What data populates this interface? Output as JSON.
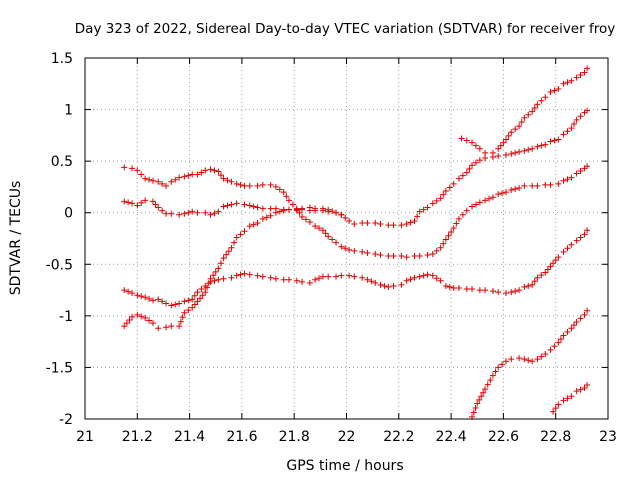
{
  "chart_data": {
    "type": "scatter",
    "title": "Day 323 of 2022, Sidereal Day-to-day VTEC variation (SDTVAR) for receiver froy",
    "xlabel": "GPS time / hours",
    "ylabel": "SDTVAR / TECUs",
    "xlim": [
      21,
      23
    ],
    "ylim": [
      -2,
      1.5
    ],
    "x_ticks": [
      "21",
      "21.2",
      "21.4",
      "21.6",
      "21.8",
      "22",
      "22.2",
      "22.4",
      "22.6",
      "22.8",
      "23"
    ],
    "y_ticks": [
      "1.5",
      "1",
      "0.5",
      "0",
      "-0.5",
      "-1",
      "-1.5",
      "-2"
    ],
    "grid": true,
    "marker": "+",
    "colors": {
      "marker": "#e00000",
      "grid": "#a0a0a0",
      "frame": "#000000"
    },
    "series": [
      {
        "x": [
          21.15,
          21.18,
          21.2,
          21.23,
          21.26,
          21.28,
          21.31,
          21.33,
          21.36,
          21.38,
          21.41,
          21.43,
          21.46,
          21.48,
          21.51,
          21.53,
          21.56,
          21.58,
          21.61,
          21.63,
          21.66,
          21.68,
          21.71,
          21.73,
          21.76,
          21.78,
          21.81,
          21.83,
          21.86,
          21.88,
          21.91,
          21.93,
          21.96,
          21.98,
          22.01,
          22.03,
          22.06,
          22.08,
          22.11,
          22.13,
          22.16,
          22.18,
          22.21,
          22.23,
          22.26,
          22.28,
          22.31,
          22.33,
          22.36,
          22.38,
          22.41,
          22.43,
          22.46,
          22.48,
          22.51,
          22.53,
          22.56,
          22.58,
          22.61,
          22.63,
          22.66,
          22.68,
          22.71,
          22.73,
          22.76,
          22.78,
          22.81,
          22.83,
          22.86,
          22.88,
          22.91,
          22.92
        ],
        "y": [
          0.44,
          0.43,
          0.41,
          0.33,
          0.31,
          0.3,
          0.26,
          0.3,
          0.34,
          0.35,
          0.37,
          0.37,
          0.41,
          0.42,
          0.4,
          0.33,
          0.3,
          0.28,
          0.26,
          0.26,
          0.26,
          0.27,
          0.27,
          0.25,
          0.2,
          0.12,
          0.04,
          -0.04,
          -0.09,
          -0.13,
          -0.17,
          -0.23,
          -0.29,
          -0.33,
          -0.36,
          -0.37,
          -0.38,
          -0.39,
          -0.4,
          -0.41,
          -0.42,
          -0.42,
          -0.42,
          -0.43,
          -0.42,
          -0.42,
          -0.41,
          -0.4,
          -0.34,
          -0.26,
          -0.15,
          -0.06,
          0.02,
          0.06,
          0.1,
          0.12,
          0.15,
          0.18,
          0.2,
          0.22,
          0.24,
          0.26,
          0.26,
          0.26,
          0.27,
          0.27,
          0.28,
          0.31,
          0.34,
          0.38,
          0.43,
          0.45
        ]
      },
      {
        "x": [
          21.15,
          21.18,
          21.2,
          21.23,
          21.26,
          21.28,
          21.31,
          21.33,
          21.36,
          21.38,
          21.41,
          21.43,
          21.46,
          21.48,
          21.51,
          21.53,
          21.56,
          21.58,
          21.61,
          21.63,
          21.66,
          21.68,
          21.71,
          21.73,
          21.76,
          21.78,
          21.81,
          21.83,
          21.86,
          21.88,
          21.91,
          21.93,
          21.96,
          21.98,
          22.01,
          22.03,
          22.06,
          22.08,
          22.11,
          22.13,
          22.16,
          22.18,
          22.21,
          22.23,
          22.26,
          22.28,
          22.31,
          22.33,
          22.36,
          22.38,
          22.41,
          22.43,
          22.46,
          22.48,
          22.51,
          22.53,
          22.56,
          22.58,
          22.61,
          22.63,
          22.66,
          22.68,
          22.71,
          22.73,
          22.76,
          22.78,
          22.81,
          22.83,
          22.86,
          22.88,
          22.91,
          22.92
        ],
        "y": [
          0.11,
          0.09,
          0.07,
          0.12,
          0.11,
          0.05,
          -0.01,
          -0.01,
          -0.02,
          -0.01,
          0.01,
          0.0,
          0.0,
          -0.02,
          0.01,
          0.06,
          0.08,
          0.09,
          0.08,
          0.07,
          0.05,
          0.04,
          0.04,
          0.04,
          0.03,
          0.03,
          0.03,
          0.03,
          0.02,
          0.02,
          0.02,
          0.01,
          0.0,
          -0.02,
          -0.08,
          -0.11,
          -0.1,
          -0.1,
          -0.1,
          -0.11,
          -0.12,
          -0.12,
          -0.12,
          -0.11,
          -0.08,
          0.01,
          0.05,
          0.09,
          0.14,
          0.21,
          0.28,
          0.33,
          0.39,
          0.46,
          0.51,
          0.53,
          0.54,
          0.55,
          0.56,
          0.57,
          0.59,
          0.6,
          0.62,
          0.64,
          0.66,
          0.69,
          0.71,
          0.76,
          0.82,
          0.9,
          0.97,
          0.99
        ]
      },
      {
        "x": [
          21.15,
          21.18,
          21.2,
          21.23,
          21.26,
          21.28,
          21.31,
          21.33,
          21.36,
          21.38,
          21.41,
          21.43,
          21.46,
          21.48,
          21.51,
          21.53,
          21.56,
          21.58,
          21.61,
          21.63,
          21.66,
          21.68,
          21.71,
          21.73,
          21.76,
          21.78,
          21.81,
          21.83,
          21.86,
          21.88,
          21.91,
          21.93,
          21.96,
          21.98,
          22.01,
          22.03,
          22.06,
          22.08,
          22.11,
          22.13,
          22.16,
          22.18,
          22.21,
          22.23,
          22.26,
          22.28,
          22.31,
          22.33,
          22.36,
          22.38,
          22.41,
          22.43,
          22.46,
          22.48,
          22.51,
          22.53,
          22.56,
          22.58,
          22.61,
          22.63,
          22.66,
          22.68,
          22.71,
          22.73,
          22.76,
          22.78,
          22.81,
          22.83,
          22.86,
          22.88,
          22.91,
          22.92
        ],
        "y": [
          -0.75,
          -0.78,
          -0.8,
          -0.82,
          -0.85,
          -0.84,
          -0.88,
          -0.9,
          -0.88,
          -0.86,
          -0.84,
          -0.77,
          -0.71,
          -0.67,
          -0.65,
          -0.64,
          -0.63,
          -0.61,
          -0.59,
          -0.6,
          -0.61,
          -0.62,
          -0.63,
          -0.64,
          -0.65,
          -0.65,
          -0.66,
          -0.67,
          -0.68,
          -0.65,
          -0.62,
          -0.62,
          -0.62,
          -0.61,
          -0.61,
          -0.62,
          -0.63,
          -0.65,
          -0.68,
          -0.7,
          -0.72,
          -0.71,
          -0.7,
          -0.66,
          -0.63,
          -0.62,
          -0.6,
          -0.61,
          -0.66,
          -0.71,
          -0.73,
          -0.73,
          -0.74,
          -0.74,
          -0.75,
          -0.75,
          -0.76,
          -0.77,
          -0.78,
          -0.77,
          -0.75,
          -0.72,
          -0.7,
          -0.63,
          -0.58,
          -0.52,
          -0.43,
          -0.38,
          -0.31,
          -0.27,
          -0.21,
          -0.17
        ]
      },
      {
        "x": [
          21.15,
          21.18,
          21.2,
          21.23,
          21.26,
          21.28,
          21.31,
          21.33,
          21.36,
          21.38,
          21.41,
          21.43,
          21.46,
          21.48,
          21.51,
          21.53,
          21.56,
          21.58,
          21.61,
          21.63,
          21.66,
          21.68,
          21.71,
          21.73,
          21.76,
          21.78,
          21.81,
          21.83,
          21.86,
          21.88,
          21.91,
          21.93,
          21.96,
          21.98
        ],
        "y": [
          -1.1,
          -1.01,
          -0.99,
          -1.02,
          -1.07,
          -1.12,
          -1.11,
          -1.1,
          -1.1,
          -0.97,
          -0.92,
          -0.86,
          -0.77,
          -0.64,
          -0.54,
          -0.44,
          -0.34,
          -0.24,
          -0.18,
          -0.13,
          -0.1,
          -0.06,
          -0.03,
          0.0,
          0.02,
          0.03,
          0.02,
          0.04,
          0.05,
          0.04,
          0.04,
          0.03,
          0.0,
          -0.02
        ]
      },
      {
        "x": [
          22.44,
          22.46,
          22.48,
          22.51,
          22.53,
          22.56,
          22.58,
          22.61,
          22.63,
          22.66,
          22.68,
          22.71,
          22.73,
          22.76,
          22.78,
          22.81,
          22.83,
          22.86,
          22.88,
          22.91,
          22.92
        ],
        "y": [
          0.72,
          0.7,
          0.68,
          0.62,
          0.58,
          0.58,
          0.62,
          0.71,
          0.78,
          0.84,
          0.92,
          0.98,
          1.05,
          1.12,
          1.17,
          1.2,
          1.25,
          1.28,
          1.31,
          1.36,
          1.4
        ]
      },
      {
        "x": [
          22.48,
          22.5,
          22.53,
          22.56,
          22.58,
          22.61,
          22.63,
          22.66,
          22.68,
          22.71,
          22.73,
          22.76,
          22.78,
          22.81,
          22.83,
          22.86,
          22.88,
          22.91,
          22.92
        ],
        "y": [
          -1.98,
          -1.85,
          -1.71,
          -1.58,
          -1.5,
          -1.44,
          -1.42,
          -1.41,
          -1.42,
          -1.44,
          -1.42,
          -1.37,
          -1.33,
          -1.26,
          -1.19,
          -1.12,
          -1.06,
          -0.99,
          -0.95
        ]
      },
      {
        "x": [
          22.79,
          22.81,
          22.83,
          22.86,
          22.88,
          22.91,
          22.92
        ],
        "y": [
          -1.93,
          -1.86,
          -1.82,
          -1.78,
          -1.73,
          -1.7,
          -1.67
        ]
      }
    ]
  }
}
